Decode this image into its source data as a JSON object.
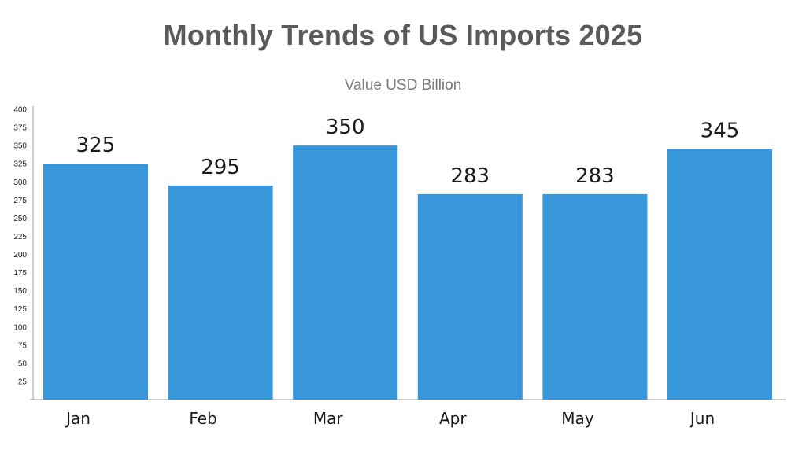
{
  "chart_data": {
    "type": "bar",
    "title": "Monthly Trends of US Imports 2025",
    "subtitle": "Value USD Billion",
    "categories": [
      "Jan",
      "Feb",
      "Mar",
      "Apr",
      "May",
      "Jun"
    ],
    "series": [
      {
        "values": [
          325,
          295,
          350,
          283,
          283,
          345
        ]
      }
    ],
    "data_labels": [
      "325",
      "295",
      "350",
      "283",
      "283",
      "345"
    ],
    "yticks": [
      25,
      50,
      75,
      100,
      125,
      150,
      175,
      200,
      225,
      250,
      275,
      300,
      325,
      350,
      375,
      400
    ],
    "ylim": [
      0,
      400
    ],
    "xlabel": "",
    "ylabel": "",
    "grid": false,
    "legend": "none",
    "bar_color": "#3897db",
    "axis_color": "#9a9a9a"
  }
}
